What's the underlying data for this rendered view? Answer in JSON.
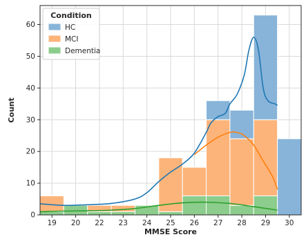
{
  "chart_data": {
    "type": "bar",
    "stacked": true,
    "xlabel": "MMSE Score",
    "ylabel": "Count",
    "ylim": [
      0,
      66
    ],
    "yticks": [
      0,
      10,
      20,
      30,
      40,
      50,
      60
    ],
    "xticks": [
      "19",
      "20",
      "22",
      "23",
      "24",
      "25",
      "26",
      "27",
      "28",
      "29",
      "30"
    ],
    "grid": true,
    "legend": {
      "title": "Condition",
      "position": "top-left",
      "entries": [
        "HC",
        "MCI",
        "Dementia"
      ]
    },
    "bins": [
      {
        "x": 0.5,
        "Dementia": 1,
        "MCI": 5,
        "HC": 0
      },
      {
        "x": 1.5,
        "Dementia": 3,
        "MCI": 0,
        "HC": 0
      },
      {
        "x": 2.5,
        "Dementia": 1,
        "MCI": 2,
        "HC": 0
      },
      {
        "x": 3.5,
        "Dementia": 1,
        "MCI": 2,
        "HC": 0
      },
      {
        "x": 4.5,
        "Dementia": 3,
        "MCI": 0,
        "HC": 0
      },
      {
        "x": 5.5,
        "Dementia": 1,
        "MCI": 17,
        "HC": 0
      },
      {
        "x": 6.5,
        "Dementia": 6,
        "MCI": 9,
        "HC": 0
      },
      {
        "x": 7.5,
        "Dementia": 6,
        "MCI": 24,
        "HC": 6
      },
      {
        "x": 8.5,
        "Dementia": 3,
        "MCI": 21,
        "HC": 9
      },
      {
        "x": 9.5,
        "Dementia": 6,
        "MCI": 24,
        "HC": 33
      },
      {
        "x": 10.5,
        "Dementia": 0,
        "MCI": 0,
        "HC": 24
      }
    ],
    "series": [
      {
        "name": "HC",
        "color": "#1f77b4",
        "fill": "#88b4d9"
      },
      {
        "name": "MCI",
        "color": "#ff7f0e",
        "fill": "#fdb47a"
      },
      {
        "name": "Dementia",
        "color": "#2ca02c",
        "fill": "#8ccc8c"
      }
    ],
    "kde": [
      {
        "name": "HC",
        "color": "#1f77b4",
        "points": [
          [
            0,
            3.5
          ],
          [
            1,
            3
          ],
          [
            2,
            3.2
          ],
          [
            3,
            3.6
          ],
          [
            4,
            5
          ],
          [
            4.5,
            7
          ],
          [
            5,
            10.5
          ],
          [
            5.5,
            13.5
          ],
          [
            6,
            16
          ],
          [
            6.5,
            19.5
          ],
          [
            7,
            26
          ],
          [
            7.2,
            29
          ],
          [
            7.5,
            31
          ],
          [
            7.8,
            32
          ],
          [
            8,
            35
          ],
          [
            8.3,
            38
          ],
          [
            8.6,
            44
          ],
          [
            8.8,
            52
          ],
          [
            9,
            56
          ],
          [
            9.2,
            52
          ],
          [
            9.4,
            40
          ],
          [
            9.6,
            36
          ],
          [
            9.9,
            35
          ],
          [
            10,
            34.5
          ]
        ]
      },
      {
        "name": "MCI",
        "color": "#ff7f0e",
        "points": [
          [
            6.5,
            19
          ],
          [
            7,
            22
          ],
          [
            7.5,
            24.5
          ],
          [
            8,
            26
          ],
          [
            8.3,
            26
          ],
          [
            8.6,
            25
          ],
          [
            9,
            22
          ],
          [
            9.4,
            17
          ],
          [
            9.8,
            12
          ],
          [
            10,
            8
          ]
        ]
      },
      {
        "name": "Dementia",
        "color": "#2ca02c",
        "points": [
          [
            0,
            1
          ],
          [
            1,
            1.2
          ],
          [
            2,
            1.3
          ],
          [
            3,
            1.5
          ],
          [
            4,
            2
          ],
          [
            5,
            3
          ],
          [
            6,
            3.8
          ],
          [
            7,
            4
          ],
          [
            8,
            3.6
          ],
          [
            9,
            2.6
          ],
          [
            10,
            1.5
          ]
        ]
      }
    ]
  }
}
